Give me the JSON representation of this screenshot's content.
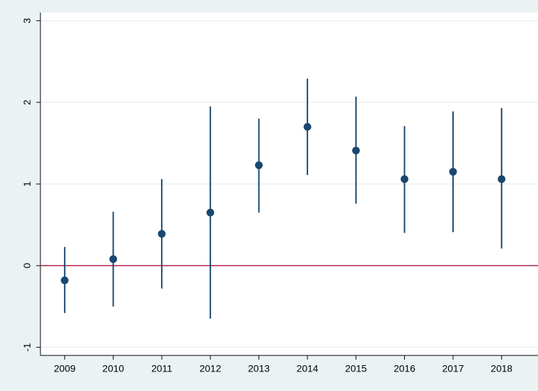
{
  "chart_data": {
    "type": "errorbar",
    "x": [
      2009,
      2010,
      2011,
      2012,
      2013,
      2014,
      2015,
      2016,
      2017,
      2018
    ],
    "values": [
      -0.18,
      0.08,
      0.39,
      0.65,
      1.23,
      1.7,
      1.41,
      1.06,
      1.15,
      1.06
    ],
    "lower": [
      -0.58,
      -0.5,
      -0.28,
      -0.65,
      0.65,
      1.11,
      0.76,
      0.4,
      0.41,
      0.21
    ],
    "upper": [
      0.23,
      0.66,
      1.06,
      1.95,
      1.8,
      2.29,
      2.07,
      1.71,
      1.89,
      1.93
    ],
    "color": "#1a476f",
    "xlim": [
      2008.5,
      2018.75
    ],
    "xticks": [
      2009,
      2010,
      2011,
      2012,
      2013,
      2014,
      2015,
      2016,
      2017,
      2018
    ],
    "ylim": [
      -1.1,
      3.1
    ],
    "yticks": [
      -1,
      0,
      1,
      2,
      3
    ],
    "grid": true,
    "reference_line": {
      "value": 0,
      "color": "#b0224b"
    }
  }
}
